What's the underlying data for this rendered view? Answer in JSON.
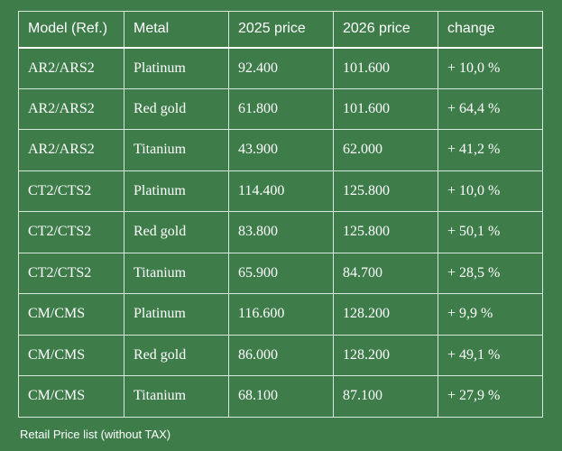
{
  "table": {
    "headers": [
      "Model (Ref.)",
      "Metal",
      "2025 price",
      "2026 price",
      "change"
    ],
    "rows": [
      [
        "AR2/ARS2",
        "Platinum",
        "92.400",
        "101.600",
        "+ 10,0 %"
      ],
      [
        "AR2/ARS2",
        "Red gold",
        "61.800",
        "101.600",
        "+ 64,4 %"
      ],
      [
        "AR2/ARS2",
        "Titanium",
        "43.900",
        "62.000",
        "+ 41,2 %"
      ],
      [
        "CT2/CTS2",
        "Platinum",
        "114.400",
        "125.800",
        "+ 10,0 %"
      ],
      [
        "CT2/CTS2",
        "Red gold",
        "83.800",
        "125.800",
        "+ 50,1 %"
      ],
      [
        "CT2/CTS2",
        "Titanium",
        "65.900",
        "84.700",
        "+ 28,5 %"
      ],
      [
        "CM/CMS",
        "Platinum",
        "116.600",
        "128.200",
        "+ 9,9 %"
      ],
      [
        "CM/CMS",
        "Red gold",
        "86.000",
        "128.200",
        "+ 49,1 %"
      ],
      [
        "CM/CMS",
        "Titanium",
        "68.100",
        "87.100",
        "+ 27,9 %"
      ]
    ]
  },
  "caption": "Retail Price list (without TAX)",
  "colors": {
    "background": "#3e7c4a",
    "text": "#ffffff",
    "grid": "#d9e8dc"
  }
}
